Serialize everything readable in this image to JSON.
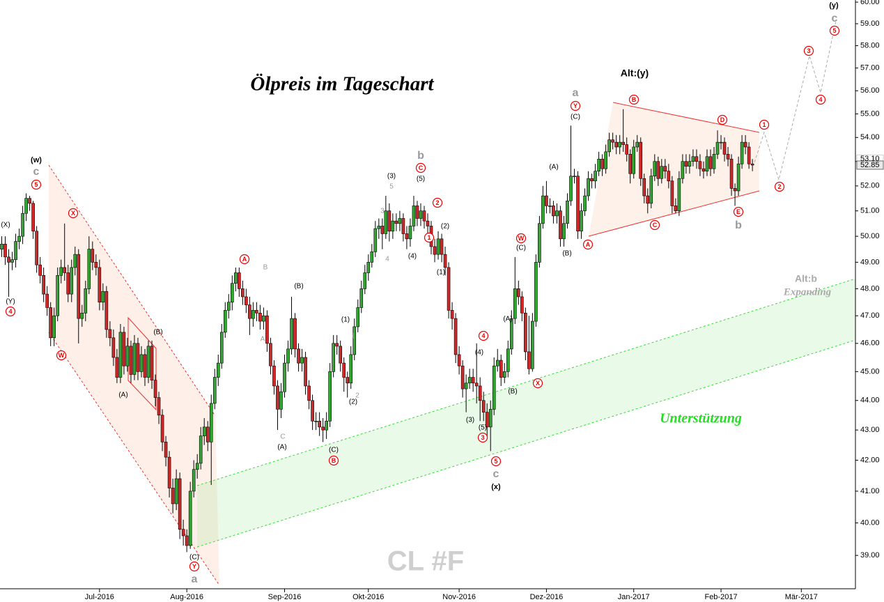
{
  "chart_data": {
    "type": "candlestick",
    "title": "Ölpreis im Tageschart",
    "watermark": "CL #F",
    "log_scale": true,
    "up_color": "#33a532",
    "down_color": "#d02828",
    "ylim": [
      38,
      60.1
    ],
    "yticks": [
      {
        "value": 39,
        "label": "39.00"
      },
      {
        "value": 40,
        "label": "40.00"
      },
      {
        "value": 41,
        "label": "41.00"
      },
      {
        "value": 42,
        "label": "42.00"
      },
      {
        "value": 43,
        "label": "43.00"
      },
      {
        "value": 44,
        "label": "44.00"
      },
      {
        "value": 45,
        "label": "45.00"
      },
      {
        "value": 46,
        "label": "46.00"
      },
      {
        "value": 47,
        "label": "47.00"
      },
      {
        "value": 48,
        "label": "48.00"
      },
      {
        "value": 49,
        "label": "49.00"
      },
      {
        "value": 50,
        "label": "50.00"
      },
      {
        "value": 51,
        "label": "51.00"
      },
      {
        "value": 52,
        "label": "52.00"
      },
      {
        "value": 53,
        "label": "53.00"
      },
      {
        "value": 54,
        "label": "54.00"
      },
      {
        "value": 55,
        "label": "55.00"
      },
      {
        "value": 56,
        "label": "56.00"
      },
      {
        "value": 57,
        "label": "57.00"
      },
      {
        "value": 58,
        "label": "58.00"
      },
      {
        "value": 59,
        "label": "59.00"
      },
      {
        "value": 60,
        "label": "60.00"
      }
    ],
    "price_labels": [
      {
        "value": 53.1,
        "label": "53.10"
      },
      {
        "value": 52.85,
        "label": "52.85"
      }
    ],
    "categories": [
      null,
      null,
      null,
      null,
      null,
      null,
      null,
      null,
      null,
      null,
      null,
      null,
      null,
      null,
      null,
      null,
      null,
      null,
      null,
      null,
      null,
      null,
      null,
      null,
      null,
      null,
      null,
      null,
      "Jul-2016",
      null,
      null,
      null,
      null,
      null,
      null,
      null,
      null,
      null,
      null,
      null,
      null,
      null,
      null,
      null,
      null,
      null,
      null,
      null,
      null,
      null,
      null,
      null,
      null,
      "Aug-2016",
      null,
      null,
      null,
      null,
      null,
      null,
      null,
      null,
      null,
      null,
      null,
      null,
      null,
      null,
      null,
      null,
      null,
      null,
      null,
      null,
      null,
      null,
      null,
      null,
      null,
      null,
      null,
      "Sep-2016",
      null,
      null,
      null,
      null,
      null,
      null,
      null,
      null,
      null,
      null,
      null,
      null,
      null,
      null,
      null,
      null,
      null,
      null,
      null,
      null,
      null,
      null,
      null,
      "Okt-2016",
      null,
      null,
      null,
      null,
      null,
      null,
      null,
      null,
      null,
      null,
      null,
      null,
      null,
      null,
      null,
      null,
      null,
      null,
      null,
      null,
      null,
      null,
      null,
      null,
      null,
      "Nov-2016",
      null,
      null,
      null,
      null,
      null,
      null,
      null,
      null,
      null,
      null,
      null,
      null,
      null,
      null,
      null,
      null,
      null,
      null,
      null,
      null,
      null,
      null,
      null,
      null,
      "Dez-2016",
      null,
      null,
      null,
      null,
      null,
      null,
      null,
      null,
      null,
      null,
      null,
      null,
      null,
      null,
      null,
      null,
      null,
      null,
      null,
      null,
      null,
      null,
      null,
      null,
      "Jan-2017",
      null,
      null,
      null,
      null,
      null,
      null,
      null,
      null,
      null,
      null,
      null,
      null,
      null,
      null,
      null,
      null,
      null,
      null,
      null,
      null,
      null,
      null,
      null,
      null,
      "Feb-2017",
      null,
      null,
      null,
      null,
      null,
      null,
      null,
      null,
      null,
      null,
      null,
      null,
      null,
      null,
      null,
      null,
      null,
      null,
      null,
      null,
      null,
      null,
      "Mär-2017",
      null,
      null,
      null,
      null,
      null,
      null,
      null,
      null,
      null,
      null,
      null,
      null,
      null,
      null,
      null
    ],
    "open": [
      49.5,
      49.7,
      49.2,
      49.0,
      49.1,
      49.8,
      50.0,
      50.9,
      51.5,
      51.3,
      50.2,
      48.9,
      48.5,
      47.8,
      47.3,
      46.2,
      47.0,
      48.5,
      48.8,
      48.6,
      47.8,
      48.8,
      49.3,
      46.9,
      47.1,
      48.0,
      49.5,
      49.0,
      48.8,
      47.5,
      47.9,
      46.5,
      46.2,
      45.5,
      44.8,
      46.4,
      45.2,
      45.9,
      44.9,
      46.0,
      45.0,
      45.6,
      44.8,
      45.9,
      44.7,
      44.1,
      43.5,
      42.6,
      42.1,
      41.1,
      40.6,
      41.4,
      39.8,
      39.6,
      39.3,
      41.0,
      41.7,
      41.9,
      42.8,
      43.1,
      42.6,
      43.9,
      44.8,
      45.3,
      46.4,
      47.2,
      47.5,
      48.2,
      48.6,
      48.0,
      47.7,
      47.4,
      46.9,
      47.2,
      47.1,
      46.8,
      47.0,
      46.0,
      45.2,
      44.5,
      43.7,
      44.3,
      45.3,
      45.8,
      46.9,
      45.8,
      45.3,
      45.5,
      44.5,
      44.0,
      43.3,
      43.3,
      43.1,
      43.0,
      43.3,
      45.0,
      46.0,
      45.9,
      45.3,
      44.8,
      44.6,
      45.6,
      46.6,
      47.3,
      48.0,
      48.6,
      49.0,
      49.4,
      50.3,
      50.4,
      50.1,
      51.0,
      50.2,
      50.6,
      50.5,
      50.7,
      50.1,
      49.9,
      50.4,
      51.2,
      50.7,
      51.0,
      50.6,
      50.4,
      49.6,
      49.3,
      49.9,
      49.3,
      48.8,
      47.2,
      46.9,
      45.6,
      45.2,
      44.4,
      44.6,
      44.8,
      44.6,
      44.5,
      44.0,
      43.6,
      43.1,
      43.7,
      45.2,
      45.4,
      44.8,
      45.0,
      45.8,
      46.9,
      48.0,
      47.7,
      47.1,
      45.7,
      45.1,
      46.8,
      49.0,
      50.5,
      51.6,
      51.2,
      51.2,
      50.8,
      51.0,
      49.9,
      50.5,
      51.4,
      52.4,
      52.4,
      50.2,
      51.0,
      51.6,
      52.3,
      52.2,
      52.6,
      53.1,
      52.7,
      53.4,
      53.9,
      53.8,
      53.6,
      53.8,
      53.7,
      53.3,
      52.5,
      53.6,
      53.8,
      52.3,
      51.6,
      51.3,
      52.4,
      53.0,
      52.3,
      52.8,
      52.6,
      52.2,
      51.2,
      51.0,
      52.3,
      53.0,
      52.8,
      53.0,
      53.2,
      53.0,
      52.7,
      52.6,
      53.2,
      52.7,
      53.3,
      53.8,
      53.8,
      53.3,
      53.1,
      51.9,
      51.8,
      52.9,
      53.8,
      53.6,
      52.9,
      null,
      null,
      null,
      null,
      null,
      null,
      null,
      null,
      null,
      null,
      null,
      null,
      null,
      null,
      null,
      null,
      null,
      null,
      null,
      null,
      null,
      null,
      null,
      null,
      null,
      null,
      null,
      null,
      null
    ],
    "high": [
      50.0,
      50.0,
      49.5,
      49.4,
      50.1,
      50.3,
      51.2,
      51.7,
      51.6,
      51.4,
      50.4,
      49.2,
      48.8,
      48.1,
      47.5,
      47.3,
      48.8,
      49.1,
      50.5,
      48.9,
      49.1,
      49.6,
      49.5,
      47.4,
      48.3,
      50.0,
      49.8,
      49.3,
      49.1,
      48.2,
      48.1,
      46.8,
      46.5,
      45.8,
      46.7,
      46.6,
      46.2,
      46.1,
      46.3,
      46.2,
      45.9,
      45.8,
      46.1,
      46.1,
      44.9,
      44.3,
      43.7,
      42.8,
      42.3,
      41.4,
      41.7,
      41.6,
      40.1,
      39.8,
      41.3,
      42.0,
      42.2,
      43.1,
      43.4,
      43.3,
      44.2,
      45.1,
      45.6,
      46.7,
      47.5,
      47.8,
      48.5,
      48.8,
      48.8,
      48.3,
      48.0,
      47.7,
      47.5,
      47.5,
      47.4,
      47.3,
      47.2,
      46.2,
      45.4,
      44.7,
      44.6,
      45.6,
      46.1,
      47.7,
      47.1,
      46.0,
      45.8,
      45.7,
      44.7,
      44.2,
      43.6,
      43.6,
      43.4,
      43.6,
      45.3,
      46.3,
      46.3,
      46.1,
      45.5,
      45.0,
      45.9,
      46.9,
      47.6,
      48.3,
      48.9,
      49.3,
      49.7,
      50.6,
      50.7,
      50.7,
      51.6,
      51.3,
      50.9,
      50.9,
      51.0,
      50.9,
      50.4,
      50.7,
      51.6,
      51.4,
      51.3,
      51.2,
      50.9,
      50.6,
      49.9,
      50.2,
      50.1,
      49.6,
      49.0,
      47.5,
      47.1,
      45.9,
      45.4,
      44.9,
      45.1,
      45.1,
      46.0,
      44.8,
      44.3,
      43.9,
      44.0,
      45.5,
      45.8,
      45.6,
      45.3,
      46.1,
      47.2,
      49.2,
      48.3,
      47.9,
      47.3,
      47.0,
      47.1,
      49.3,
      50.8,
      52.0,
      52.2,
      51.5,
      51.4,
      51.3,
      51.2,
      50.8,
      51.7,
      54.5,
      52.7,
      52.6,
      51.3,
      51.9,
      52.6,
      52.5,
      52.9,
      53.4,
      53.3,
      53.7,
      54.2,
      54.2,
      54.1,
      54.1,
      55.2,
      54.0,
      53.5,
      53.9,
      54.1,
      54.0,
      52.5,
      51.9,
      52.7,
      53.3,
      53.2,
      53.1,
      53.1,
      52.9,
      52.4,
      51.5,
      52.6,
      53.3,
      53.3,
      53.3,
      53.5,
      53.5,
      53.3,
      53.0,
      53.5,
      53.5,
      53.6,
      54.3,
      54.1,
      54.0,
      53.6,
      53.3,
      52.1,
      53.2,
      54.1,
      54.1,
      53.8,
      53.1,
      null,
      null,
      null,
      null,
      null,
      null,
      null,
      null,
      null,
      null,
      null,
      null,
      null,
      null,
      null,
      null,
      null,
      null,
      null,
      null,
      null,
      null,
      null,
      null,
      null,
      null,
      null,
      null,
      null
    ],
    "low": [
      49.2,
      48.9,
      47.7,
      48.7,
      48.8,
      49.5,
      49.7,
      50.6,
      51.0,
      49.9,
      48.6,
      48.2,
      47.5,
      47.0,
      45.9,
      45.9,
      46.8,
      48.2,
      48.3,
      47.5,
      47.5,
      48.5,
      46.0,
      46.6,
      46.8,
      47.8,
      48.7,
      48.5,
      47.2,
      47.2,
      46.2,
      45.9,
      45.2,
      44.6,
      44.6,
      44.9,
      45.0,
      44.6,
      44.7,
      44.7,
      44.8,
      44.5,
      44.6,
      44.4,
      43.8,
      43.2,
      42.3,
      41.8,
      40.8,
      40.3,
      40.4,
      39.5,
      39.3,
      39.1,
      39.2,
      40.8,
      41.4,
      41.7,
      42.5,
      42.3,
      41.2,
      43.7,
      44.5,
      45.1,
      46.2,
      46.9,
      47.2,
      47.9,
      47.7,
      47.4,
      47.1,
      46.3,
      46.6,
      46.8,
      46.5,
      46.5,
      45.7,
      44.9,
      44.2,
      43.0,
      43.4,
      44.1,
      45.0,
      45.6,
      45.5,
      45.0,
      45.0,
      44.2,
      43.7,
      43.0,
      43.0,
      42.8,
      42.6,
      42.7,
      43.1,
      44.8,
      45.6,
      45.0,
      44.3,
      44.1,
      44.4,
      45.4,
      46.4,
      47.1,
      47.8,
      48.3,
      48.8,
      49.2,
      49.9,
      49.5,
      49.9,
      49.8,
      49.9,
      50.2,
      50.2,
      49.8,
      49.5,
      49.6,
      50.2,
      50.4,
      50.4,
      50.3,
      50.1,
      49.3,
      49.0,
      49.1,
      49.0,
      48.5,
      46.9,
      46.5,
      45.3,
      44.9,
      44.1,
      43.6,
      44.4,
      44.3,
      43.9,
      43.3,
      43.3,
      42.8,
      42.3,
      43.5,
      45.0,
      44.5,
      44.6,
      44.8,
      45.6,
      46.7,
      47.4,
      46.8,
      45.4,
      44.9,
      45.0,
      46.6,
      48.8,
      50.3,
      50.9,
      50.9,
      50.5,
      50.5,
      49.6,
      49.6,
      50.3,
      51.2,
      52.1,
      49.9,
      49.9,
      50.8,
      51.4,
      51.9,
      51.9,
      52.4,
      52.4,
      52.5,
      53.2,
      53.5,
      53.3,
      53.3,
      53.4,
      53.0,
      52.1,
      52.3,
      53.4,
      52.0,
      51.3,
      50.9,
      51.1,
      52.2,
      52.0,
      52.1,
      52.3,
      51.9,
      50.9,
      50.9,
      50.8,
      52.1,
      52.5,
      52.5,
      52.8,
      52.7,
      52.4,
      52.3,
      52.4,
      52.4,
      52.5,
      53.1,
      53.5,
      53.0,
      52.8,
      51.6,
      51.2,
      51.6,
      52.7,
      53.3,
      52.7,
      52.6,
      null,
      null,
      null,
      null,
      null,
      null,
      null,
      null,
      null,
      null,
      null,
      null,
      null,
      null,
      null,
      null,
      null,
      null,
      null,
      null,
      null,
      null,
      null,
      null,
      null,
      null,
      null,
      null,
      null
    ],
    "close": [
      49.7,
      49.2,
      49.0,
      49.1,
      49.8,
      50.0,
      50.9,
      51.5,
      51.3,
      50.2,
      48.9,
      48.5,
      47.8,
      47.3,
      46.2,
      47.0,
      48.5,
      48.8,
      48.6,
      47.8,
      48.8,
      49.3,
      46.9,
      47.1,
      48.0,
      49.5,
      49.0,
      48.8,
      47.5,
      47.9,
      46.5,
      46.2,
      45.5,
      44.8,
      46.4,
      45.2,
      45.9,
      44.9,
      46.0,
      45.0,
      45.6,
      44.8,
      45.9,
      44.7,
      44.1,
      43.5,
      42.6,
      42.1,
      41.1,
      40.6,
      41.4,
      39.8,
      39.6,
      39.3,
      41.0,
      41.7,
      41.9,
      42.8,
      43.1,
      42.6,
      43.9,
      44.8,
      45.3,
      46.4,
      47.2,
      47.5,
      48.2,
      48.6,
      48.0,
      47.7,
      47.4,
      46.9,
      47.2,
      47.1,
      46.8,
      47.0,
      46.0,
      45.2,
      44.5,
      43.7,
      44.3,
      45.3,
      45.8,
      46.9,
      45.8,
      45.3,
      45.5,
      44.5,
      44.0,
      43.3,
      43.3,
      43.1,
      43.0,
      43.3,
      45.0,
      46.0,
      45.9,
      45.3,
      44.8,
      44.6,
      45.6,
      46.6,
      47.3,
      48.0,
      48.6,
      49.0,
      49.4,
      50.3,
      50.4,
      50.1,
      51.0,
      50.2,
      50.6,
      50.5,
      50.7,
      50.1,
      49.9,
      50.4,
      51.2,
      50.7,
      51.0,
      50.6,
      50.4,
      49.6,
      49.3,
      49.9,
      49.3,
      48.8,
      47.2,
      46.9,
      45.6,
      45.2,
      44.4,
      44.6,
      44.8,
      44.6,
      44.5,
      44.0,
      43.6,
      43.1,
      43.7,
      45.2,
      45.4,
      44.8,
      45.0,
      45.8,
      46.9,
      48.0,
      47.7,
      47.1,
      45.7,
      45.1,
      46.8,
      49.0,
      50.5,
      51.6,
      51.2,
      51.2,
      50.8,
      51.0,
      49.9,
      50.5,
      51.4,
      52.4,
      52.4,
      50.2,
      51.0,
      51.6,
      52.3,
      52.2,
      52.6,
      53.1,
      52.7,
      53.4,
      53.9,
      53.8,
      53.6,
      53.8,
      53.7,
      53.3,
      52.5,
      53.6,
      53.8,
      52.3,
      51.6,
      51.3,
      52.4,
      53.0,
      52.3,
      52.8,
      52.6,
      52.2,
      51.2,
      51.0,
      52.3,
      53.0,
      52.8,
      53.0,
      53.2,
      53.0,
      52.7,
      52.6,
      53.2,
      52.7,
      53.3,
      53.8,
      53.8,
      53.3,
      53.1,
      51.9,
      51.8,
      52.9,
      53.8,
      53.6,
      52.9,
      52.85,
      null,
      null,
      null,
      null,
      null,
      null,
      null,
      null,
      null,
      null,
      null,
      null,
      null,
      null,
      null,
      null,
      null,
      null,
      null,
      null,
      null,
      null,
      null,
      null,
      null,
      null,
      null,
      null,
      null
    ],
    "annotations": [
      "(X)",
      "(Y)",
      "4",
      "(w)",
      "c",
      "5",
      "W",
      "X",
      "(A)",
      "(B)",
      "(C)",
      "Y",
      "a",
      "A",
      "B",
      "A",
      "(B)",
      "C",
      "(A)",
      "(C)",
      "B",
      "(1)",
      "1",
      "2",
      "(2)",
      "3",
      "(3)",
      "5",
      "4",
      "(4)",
      "b",
      "C",
      "(5)",
      "2",
      "(2)",
      "1",
      "(1)",
      "4",
      "(4)",
      "(3)",
      "(5)",
      "3",
      "5",
      "c",
      "(x)",
      "(A)",
      "(B)",
      "W",
      "(C)",
      "X",
      "(A)",
      "(B)",
      "a",
      "Y",
      "(C)",
      "A",
      "B",
      "Alt:(y)",
      "C",
      "D",
      "E",
      "b",
      "1",
      "2",
      "3",
      "4",
      "5",
      "c",
      "(y)",
      "Alt:b",
      "Expanding",
      "Unterstützung"
    ]
  }
}
